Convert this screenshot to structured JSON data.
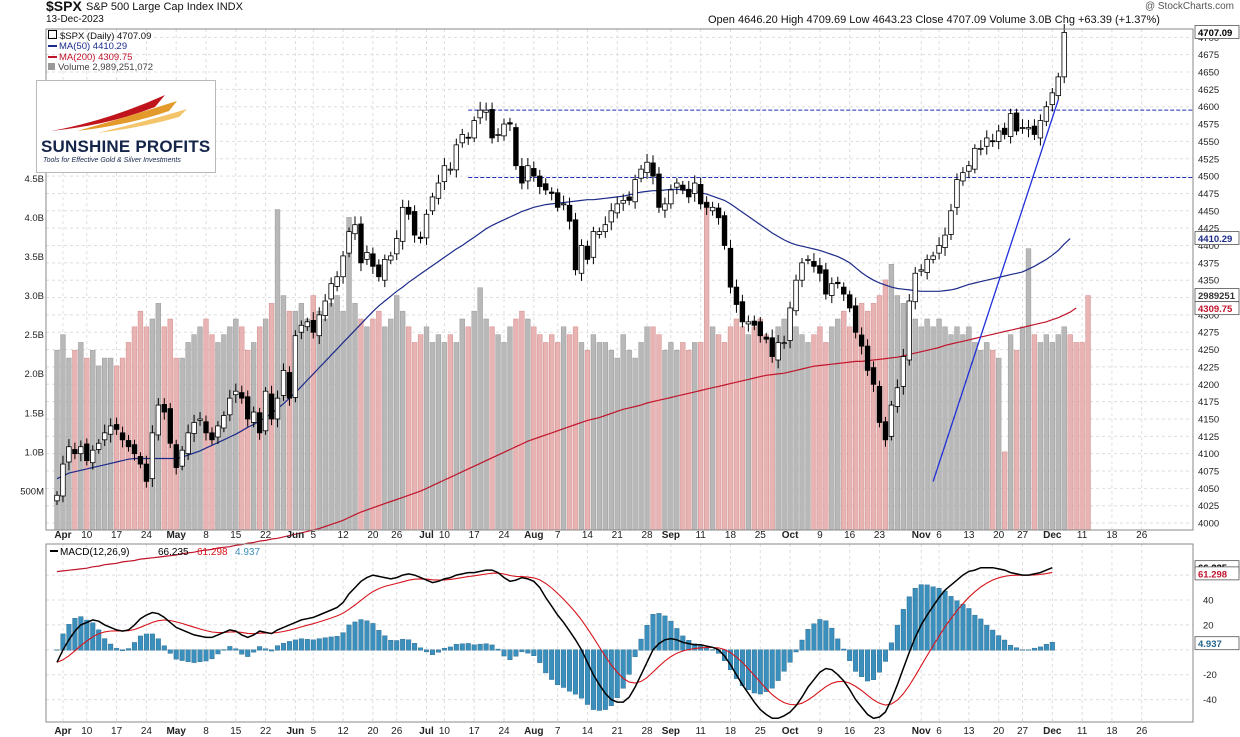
{
  "header": {
    "symbol": "$SPX",
    "name": "S&P 500 Large Cap Index INDX",
    "date": "13-Dec-2023",
    "watermark": "@ StockCharts.com",
    "ohlc": "Open 4646.20  High 4709.69  Low 4643.23  Close 4707.09  Volume 3.0B  Chg +63.39 (+1.37%)"
  },
  "legend": {
    "price": "$SPX (Daily) 4707.09",
    "ma50": "MA(50) 4410.29",
    "ma200": "MA(200) 4309.75",
    "volume": "Volume 2,989,251,072"
  },
  "logo": {
    "name": "SUNSHINE PROFITS",
    "tagline": "Tools for Effective Gold & Silver Investments"
  },
  "colors": {
    "up": "#ffffff",
    "down": "#000000",
    "ma50": "#1c2b8a",
    "ma200": "#c0142b",
    "vol_up": "#b8b8b8",
    "vol_down": "#e8b3b3",
    "macd": "#000000",
    "signal": "#d8141c",
    "hist": "#3a8fbc",
    "trend": "#1f2fd8",
    "hline": "#1f2fb8",
    "grid": "#dedede"
  },
  "chart_data": {
    "type": "candlestick",
    "price_axis": {
      "min": 3990,
      "max": 4712,
      "ticks": [
        4000,
        4025,
        4050,
        4075,
        4100,
        4125,
        4150,
        4175,
        4200,
        4225,
        4250,
        4275,
        4300,
        4325,
        4350,
        4375,
        4400,
        4425,
        4450,
        4475,
        4500,
        4525,
        4550,
        4575,
        4600,
        4625,
        4650,
        4675,
        4700
      ]
    },
    "price_tags": [
      "4707.09",
      "4410.29",
      "4309.75"
    ],
    "volume_axis": {
      "max": "5B",
      "ticks": [
        "500M",
        "1.0B",
        "1.5B",
        "2.0B",
        "2.5B",
        "3.0B",
        "3.5B",
        "4.0B",
        "4.5B"
      ]
    },
    "volume_tag": "2989251",
    "macd_params": "MACD(12,26,9)",
    "macd_values": [
      "66.235",
      "61.298",
      "4.937"
    ],
    "macd_axis": {
      "min": -58,
      "max": 85,
      "ticks": [
        -40,
        -20,
        0,
        20,
        40,
        60
      ],
      "tick_labels": [
        "-40",
        "-20",
        "",
        "20",
        "40",
        ""
      ]
    },
    "horizontal_lines": [
      4595,
      4498
    ],
    "x_ticks": [
      {
        "i": 1,
        "label": "Apr"
      },
      {
        "i": 5,
        "label": "10"
      },
      {
        "i": 10,
        "label": "17"
      },
      {
        "i": 15,
        "label": "24"
      },
      {
        "i": 20,
        "label": "May"
      },
      {
        "i": 25,
        "label": "8"
      },
      {
        "i": 30,
        "label": "15"
      },
      {
        "i": 35,
        "label": "22"
      },
      {
        "i": 40,
        "label": "Jun"
      },
      {
        "i": 43,
        "label": "5"
      },
      {
        "i": 48,
        "label": "12"
      },
      {
        "i": 53,
        "label": "20"
      },
      {
        "i": 57,
        "label": "26"
      },
      {
        "i": 62,
        "label": "Jul"
      },
      {
        "i": 65,
        "label": "10"
      },
      {
        "i": 70,
        "label": "17"
      },
      {
        "i": 75,
        "label": "24"
      },
      {
        "i": 80,
        "label": "Aug"
      },
      {
        "i": 84,
        "label": "7"
      },
      {
        "i": 89,
        "label": "14"
      },
      {
        "i": 94,
        "label": "21"
      },
      {
        "i": 99,
        "label": "28"
      },
      {
        "i": 103,
        "label": "Sep"
      },
      {
        "i": 108,
        "label": "11"
      },
      {
        "i": 113,
        "label": "18"
      },
      {
        "i": 118,
        "label": "25"
      },
      {
        "i": 123,
        "label": "Oct"
      },
      {
        "i": 128,
        "label": "9"
      },
      {
        "i": 133,
        "label": "16"
      },
      {
        "i": 138,
        "label": "23"
      },
      {
        "i": 145,
        "label": "Nov"
      },
      {
        "i": 148,
        "label": "6"
      },
      {
        "i": 153,
        "label": "13"
      },
      {
        "i": 158,
        "label": "20"
      },
      {
        "i": 162,
        "label": "27"
      },
      {
        "i": 167,
        "label": "Dec"
      },
      {
        "i": 172,
        "label": "11"
      },
      {
        "i": 177,
        "label": "18"
      },
      {
        "i": 182,
        "label": "26"
      }
    ],
    "close": [
      4040,
      4085,
      4110,
      4100,
      4110,
      4090,
      4105,
      4115,
      4130,
      4140,
      4135,
      4120,
      4110,
      4100,
      4085,
      4060,
      4130,
      4170,
      4160,
      4115,
      4080,
      4105,
      4130,
      4145,
      4150,
      4130,
      4120,
      4140,
      4155,
      4180,
      4190,
      4180,
      4150,
      4160,
      4130,
      4190,
      4150,
      4180,
      4220,
      4180,
      4270,
      4285,
      4290,
      4275,
      4300,
      4320,
      4345,
      4355,
      4385,
      4420,
      4430,
      4375,
      4390,
      4370,
      4355,
      4380,
      4385,
      4410,
      4455,
      4445,
      4415,
      4410,
      4445,
      4470,
      4490,
      4515,
      4510,
      4545,
      4560,
      4555,
      4580,
      4595,
      4595,
      4555,
      4560,
      4575,
      4575,
      4515,
      4490,
      4515,
      4500,
      4485,
      4480,
      4475,
      4455,
      4460,
      4435,
      4365,
      4400,
      4380,
      4420,
      4420,
      4430,
      4450,
      4460,
      4465,
      4465,
      4495,
      4510,
      4520,
      4500,
      4455,
      4460,
      4480,
      4490,
      4480,
      4470,
      4490,
      4460,
      4455,
      4455,
      4440,
      4400,
      4340,
      4315,
      4290,
      4290,
      4285,
      4270,
      4265,
      4240,
      4260,
      4260,
      4310,
      4350,
      4375,
      4380,
      4370,
      4360,
      4330,
      4345,
      4345,
      4330,
      4310,
      4275,
      4255,
      4220,
      4200,
      4145,
      4120,
      4170,
      4195,
      4240,
      4320,
      4360,
      4365,
      4380,
      4385,
      4400,
      4415,
      4450,
      4495,
      4505,
      4515,
      4540,
      4540,
      4555,
      4550,
      4565,
      4560,
      4590,
      4565,
      4570,
      4570,
      4560,
      4580,
      4600,
      4620,
      4643,
      4707
    ],
    "volume_b": [
      2.3,
      2.5,
      2.2,
      2.3,
      2.4,
      2.2,
      2.3,
      2.1,
      2.2,
      2.2,
      2.1,
      2.2,
      2.4,
      2.6,
      2.8,
      2.6,
      2.7,
      2.9,
      2.6,
      2.7,
      2.2,
      2.2,
      2.4,
      2.5,
      2.6,
      2.7,
      2.5,
      2.4,
      2.5,
      2.6,
      2.7,
      2.6,
      2.3,
      2.4,
      2.6,
      2.7,
      2.9,
      4.1,
      3.0,
      2.8,
      2.8,
      2.9,
      2.7,
      3.0,
      2.8,
      2.7,
      2.9,
      3.0,
      2.8,
      4.0,
      2.9,
      2.7,
      2.6,
      2.7,
      2.8,
      2.6,
      2.7,
      3.0,
      2.8,
      2.6,
      2.4,
      2.5,
      2.6,
      2.4,
      2.5,
      2.4,
      2.5,
      2.4,
      2.7,
      2.6,
      2.8,
      3.1,
      2.7,
      2.6,
      2.5,
      2.4,
      2.6,
      2.7,
      2.8,
      2.7,
      2.6,
      2.5,
      2.4,
      2.5,
      2.4,
      2.6,
      2.5,
      2.6,
      2.4,
      2.3,
      2.5,
      2.4,
      2.4,
      2.3,
      2.2,
      2.5,
      2.3,
      2.2,
      2.4,
      2.6,
      2.6,
      2.5,
      2.3,
      2.4,
      2.3,
      2.4,
      2.3,
      2.4,
      2.4,
      4.2,
      2.6,
      2.5,
      2.4,
      2.6,
      2.7,
      2.6,
      2.5,
      2.6,
      2.7,
      2.5,
      2.4,
      2.6,
      2.7,
      2.8,
      2.6,
      2.5,
      2.4,
      2.5,
      2.6,
      2.4,
      2.6,
      2.7,
      2.8,
      2.6,
      2.7,
      2.9,
      2.8,
      2.9,
      3.0,
      3.2,
      3.4,
      3.0,
      2.9,
      2.8,
      2.7,
      2.6,
      2.7,
      2.6,
      2.7,
      2.6,
      2.5,
      2.6,
      2.5,
      2.6,
      2.4,
      2.3,
      2.4,
      2.3,
      2.2,
      1.0,
      2.5,
      2.3,
      2.6,
      3.6,
      2.5,
      2.4,
      2.5,
      2.4,
      2.5,
      2.6,
      2.5,
      2.4,
      2.4,
      3.0
    ],
    "ma50": [
      4064,
      4068,
      4072,
      4074,
      4076,
      4078,
      4080,
      4082,
      4084,
      4086,
      4088,
      4090,
      4092,
      4093,
      4093,
      4093,
      4093,
      4093,
      4093,
      4093,
      4093,
      4095,
      4098,
      4101,
      4104,
      4108,
      4112,
      4116,
      4120,
      4124,
      4128,
      4133,
      4138,
      4142,
      4147,
      4152,
      4158,
      4165,
      4172,
      4180,
      4188,
      4197,
      4206,
      4215,
      4224,
      4233,
      4242,
      4251,
      4260,
      4269,
      4278,
      4287,
      4296,
      4305,
      4313,
      4320,
      4327,
      4334,
      4340,
      4347,
      4353,
      4359,
      4365,
      4371,
      4377,
      4383,
      4389,
      4395,
      4400,
      4406,
      4412,
      4418,
      4424,
      4429,
      4433,
      4437,
      4441,
      4445,
      4449,
      4452,
      4455,
      4457,
      4459,
      4460,
      4461,
      4462,
      4463,
      4464,
      4465,
      4466,
      4466,
      4467,
      4468,
      4469,
      4470,
      4471,
      4473,
      4475,
      4477,
      4478,
      4479,
      4479,
      4480,
      4481,
      4481,
      4480,
      4479,
      4478,
      4476,
      4474,
      4471,
      4468,
      4465,
      4460,
      4454,
      4448,
      4442,
      4436,
      4430,
      4424,
      4418,
      4413,
      4408,
      4404,
      4401,
      4399,
      4397,
      4395,
      4393,
      4390,
      4387,
      4384,
      4380,
      4375,
      4368,
      4361,
      4355,
      4350,
      4346,
      4343,
      4340,
      4338,
      4337,
      4336,
      4335,
      4334,
      4334,
      4334,
      4334,
      4335,
      4336,
      4338,
      4341,
      4344,
      4346,
      4348,
      4350,
      4352,
      4354,
      4356,
      4358,
      4360,
      4362,
      4366,
      4370,
      4375,
      4380,
      4386,
      4393,
      4402,
      4410
    ],
    "ma200": [
      3930,
      3931,
      3932,
      3933,
      3934,
      3935,
      3937,
      3938,
      3940,
      3941,
      3942,
      3944,
      3945,
      3946,
      3948,
      3949,
      3950,
      3951,
      3952,
      3953,
      3954,
      3956,
      3957,
      3958,
      3960,
      3961,
      3962,
      3964,
      3965,
      3966,
      3968,
      3969,
      3971,
      3972,
      3974,
      3975,
      3977,
      3978,
      3980,
      3982,
      3984,
      3986,
      3988,
      3990,
      3992,
      3995,
      3998,
      4001,
      4004,
      4008,
      4012,
      4016,
      4019,
      4022,
      4025,
      4028,
      4031,
      4034,
      4037,
      4040,
      4043,
      4046,
      4050,
      4054,
      4058,
      4062,
      4066,
      4070,
      4074,
      4078,
      4082,
      4086,
      4090,
      4094,
      4098,
      4102,
      4106,
      4110,
      4114,
      4118,
      4121,
      4124,
      4127,
      4130,
      4133,
      4136,
      4139,
      4142,
      4145,
      4148,
      4150,
      4152,
      4155,
      4158,
      4161,
      4164,
      4166,
      4168,
      4170,
      4173,
      4175,
      4177,
      4179,
      4181,
      4183,
      4185,
      4187,
      4189,
      4191,
      4193,
      4195,
      4197,
      4199,
      4201,
      4203,
      4205,
      4207,
      4209,
      4211,
      4213,
      4214,
      4215,
      4216,
      4218,
      4220,
      4222,
      4224,
      4226,
      4227,
      4228,
      4229,
      4230,
      4231,
      4232,
      4233,
      4233,
      4234,
      4235,
      4236,
      4237,
      4238,
      4239,
      4241,
      4243,
      4245,
      4247,
      4249,
      4251,
      4253,
      4256,
      4258,
      4260,
      4262,
      4264,
      4266,
      4268,
      4270,
      4272,
      4274,
      4276,
      4278,
      4280,
      4282,
      4284,
      4286,
      4288,
      4290,
      4293,
      4296,
      4300,
      4304,
      4310
    ],
    "macd": [
      -10,
      0,
      8,
      15,
      20,
      22,
      24,
      23,
      20,
      18,
      16,
      15,
      16,
      20,
      25,
      28,
      30,
      29,
      26,
      22,
      18,
      16,
      14,
      12,
      11,
      10,
      10,
      12,
      14,
      16,
      15,
      12,
      10,
      12,
      15,
      14,
      13,
      16,
      18,
      20,
      22,
      24,
      25,
      26,
      28,
      30,
      32,
      34,
      38,
      45,
      50,
      55,
      58,
      60,
      59,
      58,
      57,
      58,
      60,
      61,
      60,
      58,
      56,
      54,
      55,
      57,
      58,
      60,
      61,
      62,
      62,
      63,
      64,
      64,
      62,
      58,
      55,
      56,
      58,
      57,
      55,
      50,
      42,
      35,
      28,
      22,
      15,
      8,
      0,
      -10,
      -20,
      -28,
      -35,
      -40,
      -42,
      -42,
      -38,
      -30,
      -20,
      -10,
      0,
      5,
      8,
      9,
      8,
      6,
      5,
      4,
      4,
      3,
      2,
      0,
      -5,
      -12,
      -20,
      -28,
      -35,
      -42,
      -48,
      -52,
      -55,
      -55,
      -53,
      -50,
      -45,
      -38,
      -30,
      -24,
      -18,
      -15,
      -16,
      -20,
      -25,
      -32,
      -40,
      -46,
      -52,
      -55,
      -54,
      -50,
      -40,
      -28,
      -15,
      -2,
      10,
      20,
      28,
      35,
      42,
      48,
      52,
      56,
      60,
      63,
      64,
      66,
      66,
      66,
      65,
      64,
      62,
      61,
      60,
      60,
      61,
      62,
      64,
      66
    ]
  }
}
